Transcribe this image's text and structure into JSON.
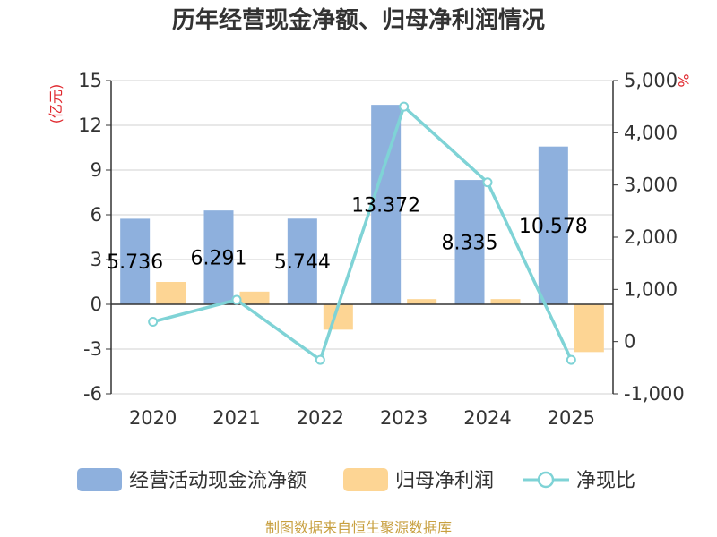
{
  "chart_data": {
    "type": "bar",
    "title": "历年经营现金净额、归母净利润情况",
    "categories": [
      "2020",
      "2021",
      "2022",
      "2023",
      "2024",
      "2025"
    ],
    "series": [
      {
        "name": "经营活动现金流净额",
        "type": "bar",
        "axis": "left",
        "values": [
          5.736,
          6.291,
          5.744,
          13.372,
          8.335,
          10.578
        ],
        "labels": [
          "5.736",
          "6.291",
          "5.744",
          "13.372",
          "8.335",
          "10.578"
        ],
        "color": "#8eb0dd"
      },
      {
        "name": "归母净利润",
        "type": "bar",
        "axis": "left",
        "values": [
          1.5,
          0.85,
          -1.7,
          0.35,
          0.35,
          -3.2
        ],
        "color": "#fdd594"
      },
      {
        "name": "净现比",
        "type": "line",
        "axis": "right",
        "values": [
          380,
          800,
          -350,
          4500,
          3050,
          -350
        ],
        "color": "#7fd3d6"
      }
    ],
    "y_left": {
      "unit": "(亿元)",
      "ylim": [
        -6,
        15
      ],
      "ticks": [
        "-6",
        "-3",
        "0",
        "3",
        "6",
        "9",
        "12",
        "15"
      ]
    },
    "y_right": {
      "unit": "%",
      "ylim": [
        -1000,
        5000
      ],
      "ticks": [
        "-1,000",
        "0",
        "1,000",
        "2,000",
        "3,000",
        "4,000",
        "5,000"
      ]
    },
    "grid": true,
    "legend_position": "bottom"
  },
  "footer": {
    "source": "制图数据来自恒生聚源数据库"
  },
  "colors": {
    "title": "#333333",
    "unit": "#e0282e",
    "source": "#c8a040",
    "grid": "#d0d0d0",
    "axis": "#333333"
  }
}
